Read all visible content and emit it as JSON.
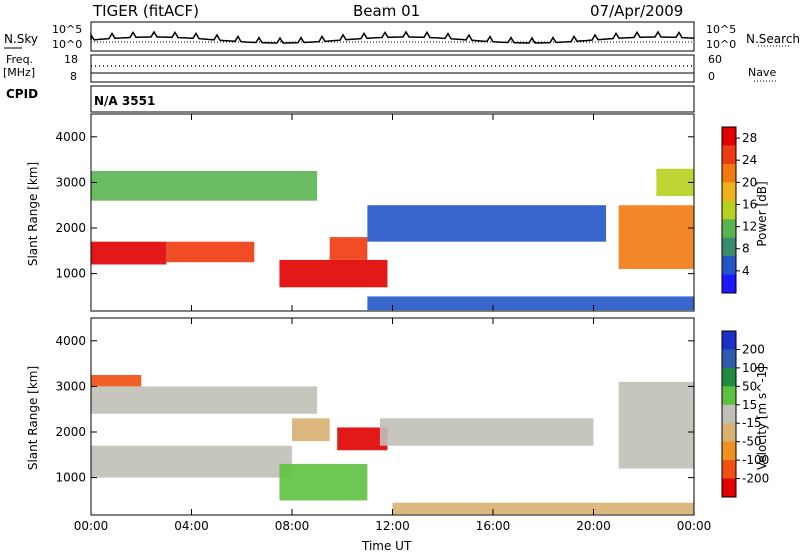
{
  "header": {
    "station": "TIGER (fitACF)",
    "beam": "Beam 01",
    "date": "07/Apr/2009"
  },
  "noise_panel": {
    "left_label": "N.Sky",
    "right_label": "N.Search",
    "ticks": [
      "10^5",
      "10^0"
    ]
  },
  "freq_panel": {
    "left_label_1": "Freq.",
    "left_label_2": "[MHz]",
    "left_ticks": [
      "18",
      "8"
    ],
    "right_ticks": [
      "60",
      "0"
    ],
    "right_label": "Nave"
  },
  "cpid_panel": {
    "label": "CPID",
    "value": "N/A 3551"
  },
  "colors": {
    "power_scale": [
      "#1a1aff",
      "#2255c8",
      "#3a8a6e",
      "#5ab450",
      "#b8d020",
      "#f0b020",
      "#f07a10",
      "#ee3a10",
      "#e00000"
    ],
    "velocity_scale": [
      "#1a30c8",
      "#2e5ab0",
      "#208a40",
      "#5ec040",
      "#c0c0b8",
      "#d8b070",
      "#f09020",
      "#f05010",
      "#e00000"
    ]
  },
  "chart_data": [
    {
      "type": "heatmap",
      "quantity": "Power",
      "ylabel": "Slant Range [km]",
      "xlabel": "Time UT",
      "x_ticks": [
        "00:00",
        "04:00",
        "08:00",
        "12:00",
        "16:00",
        "20:00",
        "00:00"
      ],
      "xlim_hours": [
        0,
        24
      ],
      "y_ticks": [
        1000,
        2000,
        3000,
        4000
      ],
      "ylim": [
        180,
        4500
      ],
      "colorbar_label": "Power [dB]",
      "colorbar_ticks": [
        4,
        8,
        12,
        16,
        20,
        24,
        28
      ],
      "colorbar_range": [
        0,
        30
      ],
      "regions": [
        {
          "t0": 0.0,
          "t1": 3.0,
          "r0": 1200,
          "r1": 1700,
          "value": 28
        },
        {
          "t0": 3.0,
          "t1": 6.5,
          "r0": 1250,
          "r1": 1700,
          "value": 24
        },
        {
          "t0": 7.5,
          "t1": 11.8,
          "r0": 700,
          "r1": 1300,
          "value": 29
        },
        {
          "t0": 9.5,
          "t1": 11.0,
          "r0": 1300,
          "r1": 1800,
          "value": 26
        },
        {
          "t0": 11.0,
          "t1": 20.5,
          "r0": 1700,
          "r1": 2500,
          "value": 6
        },
        {
          "t0": 0.0,
          "t1": 9.0,
          "r0": 2600,
          "r1": 3250,
          "value": 10
        },
        {
          "t0": 11.0,
          "t1": 24.0,
          "r0": 200,
          "r1": 500,
          "value": 5
        },
        {
          "t0": 21.0,
          "t1": 24.0,
          "r0": 1100,
          "r1": 2500,
          "value": 22
        },
        {
          "t0": 22.5,
          "t1": 24.0,
          "r0": 2700,
          "r1": 3300,
          "value": 16
        }
      ]
    },
    {
      "type": "heatmap",
      "quantity": "Velocity",
      "ylabel": "Slant Range [km]",
      "xlabel": "Time UT",
      "x_ticks": [
        "00:00",
        "04:00",
        "08:00",
        "12:00",
        "16:00",
        "20:00",
        "00:00"
      ],
      "xlim_hours": [
        0,
        24
      ],
      "y_ticks": [
        1000,
        2000,
        3000,
        4000
      ],
      "ylim": [
        180,
        4500
      ],
      "colorbar_label": "Velocity [m s^-1]",
      "colorbar_ticks": [
        200,
        100,
        50,
        15,
        -15,
        -50,
        -100,
        -200
      ],
      "colorbar_range": [
        -250,
        250
      ],
      "regions": [
        {
          "t0": 0.0,
          "t1": 8.0,
          "r0": 1000,
          "r1": 1700,
          "value": 0
        },
        {
          "t0": 0.0,
          "t1": 9.0,
          "r0": 2400,
          "r1": 3000,
          "value": 0
        },
        {
          "t0": 8.0,
          "t1": 9.5,
          "r0": 1800,
          "r1": 2300,
          "value": -60
        },
        {
          "t0": 9.8,
          "t1": 11.8,
          "r0": 1600,
          "r1": 2100,
          "value": -220
        },
        {
          "t0": 7.5,
          "t1": 11.0,
          "r0": 500,
          "r1": 1300,
          "value": 40
        },
        {
          "t0": 11.5,
          "t1": 20.0,
          "r0": 1700,
          "r1": 2300,
          "value": 0
        },
        {
          "t0": 21.0,
          "t1": 24.0,
          "r0": 1200,
          "r1": 3100,
          "value": 0
        },
        {
          "t0": 0.0,
          "t1": 2.0,
          "r0": 3000,
          "r1": 3250,
          "value": -150
        },
        {
          "t0": 12.0,
          "t1": 24.0,
          "r0": 200,
          "r1": 450,
          "value": -60
        }
      ]
    }
  ]
}
